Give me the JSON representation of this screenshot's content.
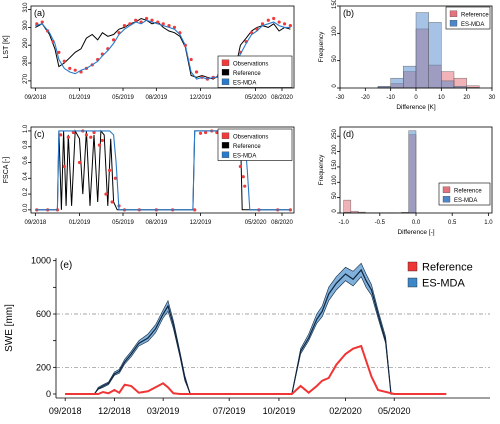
{
  "chart_data": [
    {
      "type": "line",
      "panel": "(a)",
      "ylabel": "LST [K]",
      "xlabel": "",
      "x_ticks": [
        "09/2018",
        "01/2019",
        "05/2019",
        "08/2019",
        "12/2019",
        "05/2020",
        "08/2020"
      ],
      "y_ticks": [
        270,
        280,
        290,
        300,
        310
      ],
      "ylim": [
        266,
        312
      ],
      "legend": "bottom-right",
      "series": [
        {
          "name": "Observations",
          "color": "#f03b3b",
          "style": "points",
          "x": [
            "2018-09-05",
            "2018-09-20",
            "2018-10-05",
            "2018-10-20",
            "2018-11-05",
            "2018-11-20",
            "2018-12-05",
            "2018-12-20",
            "2019-01-05",
            "2019-01-20",
            "2019-02-05",
            "2019-02-20",
            "2019-03-05",
            "2019-03-20",
            "2019-04-05",
            "2019-04-20",
            "2019-05-05",
            "2019-05-20",
            "2019-06-05",
            "2019-06-20",
            "2019-07-05",
            "2019-07-20",
            "2019-08-05",
            "2019-08-20",
            "2019-09-05",
            "2019-09-20",
            "2019-10-05",
            "2019-10-20",
            "2019-11-05",
            "2019-11-20",
            "2019-12-05",
            "2019-12-20",
            "2020-01-05",
            "2020-01-20",
            "2020-02-05",
            "2020-02-20",
            "2020-03-05",
            "2020-03-20",
            "2020-04-05",
            "2020-04-20",
            "2020-05-05",
            "2020-05-20",
            "2020-06-05",
            "2020-06-20",
            "2020-07-05",
            "2020-07-20",
            "2020-08-05"
          ],
          "values": [
            302,
            303,
            298,
            292,
            286,
            281,
            277,
            276,
            275,
            277,
            279,
            282,
            285,
            288,
            293,
            297,
            301,
            302,
            304,
            303,
            305,
            304,
            303,
            302,
            301,
            300,
            297,
            290,
            282,
            275,
            272,
            271,
            272,
            273,
            274,
            276,
            280,
            286,
            292,
            297,
            299,
            302,
            304,
            305,
            303,
            302,
            301
          ]
        },
        {
          "name": "Reference",
          "color": "#000000",
          "style": "line",
          "x": [
            "2018-09-01",
            "2018-09-20",
            "2018-10-10",
            "2018-10-25",
            "2018-11-05",
            "2018-11-20",
            "2018-12-05",
            "2018-12-20",
            "2019-01-05",
            "2019-01-20",
            "2019-02-05",
            "2019-02-20",
            "2019-03-05",
            "2019-03-20",
            "2019-04-05",
            "2019-04-20",
            "2019-05-05",
            "2019-05-20",
            "2019-06-05",
            "2019-06-20",
            "2019-07-05",
            "2019-07-20",
            "2019-08-05",
            "2019-08-20",
            "2019-09-05",
            "2019-09-20",
            "2019-10-05",
            "2019-10-20",
            "2019-11-05",
            "2019-11-20",
            "2019-12-05",
            "2019-12-20",
            "2020-01-05",
            "2020-01-20",
            "2020-02-05",
            "2020-02-20",
            "2020-03-05",
            "2020-03-20",
            "2020-04-05",
            "2020-04-20",
            "2020-05-05",
            "2020-05-20",
            "2020-06-05",
            "2020-06-20",
            "2020-07-05",
            "2020-07-20",
            "2020-08-05"
          ],
          "values": [
            300,
            302,
            296,
            288,
            278,
            280,
            283,
            286,
            288,
            294,
            296,
            293,
            297,
            295,
            296,
            299,
            300,
            302,
            303,
            305,
            304,
            302,
            303,
            300,
            298,
            297,
            295,
            289,
            273,
            272,
            273,
            272,
            271,
            273,
            275,
            274,
            276,
            290,
            294,
            298,
            300,
            301,
            300,
            302,
            298,
            300,
            299
          ]
        },
        {
          "name": "ES-MDA",
          "color": "#2a7ac9",
          "style": "line",
          "x": [
            "2018-09-01",
            "2018-09-20",
            "2018-10-10",
            "2018-10-25",
            "2018-11-05",
            "2018-11-20",
            "2018-12-05",
            "2018-12-20",
            "2019-01-05",
            "2019-01-20",
            "2019-02-05",
            "2019-02-20",
            "2019-03-05",
            "2019-03-20",
            "2019-04-05",
            "2019-04-20",
            "2019-05-05",
            "2019-05-20",
            "2019-06-05",
            "2019-06-20",
            "2019-07-05",
            "2019-07-20",
            "2019-08-05",
            "2019-08-20",
            "2019-09-05",
            "2019-09-20",
            "2019-10-05",
            "2019-10-20",
            "2019-11-05",
            "2019-11-20",
            "2019-12-05",
            "2019-12-20",
            "2020-01-05",
            "2020-01-20",
            "2020-02-05",
            "2020-02-20",
            "2020-03-05",
            "2020-03-20",
            "2020-04-05",
            "2020-04-20",
            "2020-05-05",
            "2020-05-20",
            "2020-06-05",
            "2020-06-20",
            "2020-07-05",
            "2020-07-20",
            "2020-08-05"
          ],
          "values": [
            301,
            302,
            297,
            291,
            282,
            277,
            275,
            274,
            276,
            277,
            279,
            281,
            284,
            287,
            291,
            296,
            299,
            301,
            303,
            302,
            304,
            303,
            302,
            301,
            300,
            299,
            296,
            290,
            275,
            271,
            272,
            271,
            272,
            272,
            274,
            276,
            279,
            285,
            291,
            296,
            298,
            301,
            302,
            303,
            301,
            300,
            300
          ]
        }
      ]
    },
    {
      "type": "bar",
      "panel": "(b)",
      "ylabel": "Frequency",
      "xlabel": "Difference [K]",
      "x_ticks": [
        -30,
        -20,
        -10,
        0,
        10,
        20,
        30
      ],
      "y_ticks": [
        0,
        50,
        100,
        150
      ],
      "xlim": [
        -30,
        30
      ],
      "ylim": [
        0,
        150
      ],
      "bin_edges": [
        -15,
        -10,
        -5,
        0,
        5,
        10,
        15,
        20,
        25
      ],
      "legend": "top-right",
      "series": [
        {
          "name": "Reference",
          "color": "#e5737d",
          "values": [
            2,
            8,
            30,
            108,
            42,
            30,
            18,
            4
          ]
        },
        {
          "name": "ES-MDA",
          "color": "#4d86c9",
          "values": [
            3,
            18,
            40,
            138,
            120,
            13,
            3,
            1
          ]
        }
      ]
    },
    {
      "type": "line",
      "panel": "(c)",
      "ylabel": "FSCA [-]",
      "xlabel": "",
      "x_ticks": [
        "09/2018",
        "01/2019",
        "05/2019",
        "08/2019",
        "12/2019",
        "05/2020",
        "08/2020"
      ],
      "y_ticks": [
        0.0,
        0.2,
        0.4,
        0.6,
        0.8,
        1.0
      ],
      "ylim": [
        -0.04,
        1.05
      ],
      "legend": "top-right",
      "series": [
        {
          "name": "Observations",
          "color": "#f03b3b",
          "style": "points",
          "x": [
            "2018-09-05",
            "2018-10-05",
            "2018-11-01",
            "2018-11-10",
            "2018-11-20",
            "2018-12-01",
            "2018-12-15",
            "2019-01-01",
            "2019-01-10",
            "2019-01-20",
            "2019-02-01",
            "2019-02-10",
            "2019-02-25",
            "2019-03-05",
            "2019-03-15",
            "2019-03-25",
            "2019-04-01",
            "2019-04-10",
            "2019-04-20",
            "2019-05-05",
            "2019-06-15",
            "2019-08-01",
            "2019-09-15",
            "2019-11-15",
            "2019-12-01",
            "2019-12-15",
            "2020-01-01",
            "2020-01-15",
            "2020-02-01",
            "2020-02-15",
            "2020-03-01",
            "2020-03-10",
            "2020-03-20",
            "2020-03-28",
            "2020-04-01",
            "2020-05-10",
            "2020-07-01",
            "2020-08-05"
          ],
          "values": [
            0.0,
            0.0,
            0.0,
            0.95,
            0.55,
            0.92,
            0.98,
            0.6,
            1.0,
            0.95,
            0.92,
            0.98,
            0.82,
            0.88,
            0.2,
            0.5,
            0.1,
            0.4,
            0.05,
            0.0,
            0.0,
            0.0,
            0.0,
            0.0,
            0.97,
            0.98,
            1.0,
            0.98,
            0.96,
            0.98,
            0.97,
            0.96,
            0.55,
            0.42,
            0.3,
            0.0,
            0.0,
            0.0
          ]
        },
        {
          "name": "Reference",
          "color": "#000000",
          "style": "line",
          "x": [
            "2018-09-01",
            "2018-11-01",
            "2018-11-05",
            "2018-11-12",
            "2018-11-18",
            "2018-11-25",
            "2018-12-01",
            "2018-12-10",
            "2018-12-20",
            "2019-01-01",
            "2019-01-10",
            "2019-01-20",
            "2019-01-30",
            "2019-02-10",
            "2019-02-20",
            "2019-03-01",
            "2019-03-10",
            "2019-03-20",
            "2019-03-28",
            "2019-04-05",
            "2019-04-15",
            "2019-05-01",
            "2019-11-10",
            "2019-11-15",
            "2020-03-20",
            "2020-03-25",
            "2020-04-05",
            "2020-08-05"
          ],
          "values": [
            0.0,
            0.0,
            1.0,
            0.0,
            1.0,
            0.05,
            0.95,
            0.05,
            1.0,
            0.9,
            0.2,
            1.0,
            0.05,
            0.95,
            0.1,
            1.0,
            0.95,
            0.05,
            0.9,
            0.1,
            0.0,
            0.0,
            0.0,
            1.0,
            1.0,
            0.0,
            0.0,
            0.0
          ]
        },
        {
          "name": "ES-MDA",
          "color": "#2a7ac9",
          "style": "line",
          "x": [
            "2018-09-01",
            "2018-11-01",
            "2018-11-05",
            "2018-11-25",
            "2018-12-01",
            "2019-03-25",
            "2019-04-05",
            "2019-04-12",
            "2019-04-20",
            "2019-05-01",
            "2019-11-10",
            "2019-11-15",
            "2020-03-25",
            "2020-04-01",
            "2020-04-08",
            "2020-04-15",
            "2020-08-05"
          ],
          "values": [
            0.0,
            0.0,
            1.0,
            1.0,
            1.0,
            1.0,
            0.95,
            0.6,
            0.0,
            0.0,
            0.0,
            1.0,
            1.0,
            0.92,
            0.5,
            0.0,
            0.0
          ]
        }
      ]
    },
    {
      "type": "bar",
      "panel": "(d)",
      "ylabel": "Frequency",
      "xlabel": "Difference [-]",
      "x_ticks": [
        -1.0,
        -0.5,
        0.0,
        0.5,
        1.0
      ],
      "y_ticks": [
        0,
        50,
        100,
        150,
        200,
        250
      ],
      "xlim": [
        -1.05,
        1.05
      ],
      "ylim": [
        0,
        280
      ],
      "bin_edges": [
        -1.0,
        -0.9,
        -0.8,
        -0.7,
        -0.6,
        -0.5,
        -0.4,
        -0.3,
        -0.2,
        -0.1,
        0.0
      ],
      "legend": "bottom-right",
      "series": [
        {
          "name": "Reference",
          "color": "#e5737d",
          "values": [
            42,
            6,
            3,
            1,
            1,
            1,
            1,
            1,
            2,
            255
          ]
        },
        {
          "name": "ES-MDA",
          "color": "#4d86c9",
          "values": [
            2,
            1,
            1,
            0,
            0,
            0,
            1,
            0,
            1,
            268
          ]
        }
      ]
    },
    {
      "type": "area",
      "panel": "(e)",
      "ylabel": "SWE [mm]",
      "xlabel": "",
      "x_ticks": [
        "09/2018",
        "12/2018",
        "03/2019",
        "07/2019",
        "10/2019",
        "02/2020",
        "05/2020"
      ],
      "y_ticks": [
        0,
        200,
        400,
        600,
        800,
        1000
      ],
      "y_tick_labels": [
        "0",
        "200",
        "600",
        "1000"
      ],
      "ylim": [
        -30,
        1020
      ],
      "reference_lines": [
        200,
        600
      ],
      "legend": "top-right",
      "series": [
        {
          "name": "Reference",
          "color": "#f03535",
          "x": [
            "2018-09-01",
            "2018-11-01",
            "2018-11-10",
            "2018-11-20",
            "2018-12-01",
            "2018-12-10",
            "2018-12-20",
            "2019-01-01",
            "2019-01-15",
            "2019-02-01",
            "2019-02-15",
            "2019-03-01",
            "2019-03-10",
            "2019-03-20",
            "2019-04-01",
            "2019-04-10",
            "2019-04-20",
            "2019-05-01",
            "2019-10-25",
            "2019-11-10",
            "2019-11-25",
            "2019-12-10",
            "2019-12-20",
            "2020-01-01",
            "2020-01-15",
            "2020-02-01",
            "2020-02-15",
            "2020-03-01",
            "2020-03-10",
            "2020-03-20",
            "2020-04-01",
            "2020-05-01",
            "2020-08-05"
          ],
          "values": [
            0,
            0,
            15,
            5,
            30,
            10,
            70,
            60,
            10,
            20,
            50,
            80,
            50,
            5,
            0,
            0,
            0,
            0,
            0,
            60,
            10,
            60,
            100,
            120,
            220,
            300,
            340,
            360,
            250,
            130,
            30,
            0,
            0
          ]
        },
        {
          "name": "ES-MDA",
          "color": "#3d87c8",
          "band": true,
          "x": [
            "2018-09-01",
            "2018-10-25",
            "2018-11-01",
            "2018-11-10",
            "2018-11-20",
            "2018-12-01",
            "2018-12-10",
            "2018-12-20",
            "2019-01-01",
            "2019-01-15",
            "2019-02-01",
            "2019-02-15",
            "2019-03-01",
            "2019-03-10",
            "2019-03-20",
            "2019-04-01",
            "2019-04-10",
            "2019-04-20",
            "2019-05-01",
            "2019-10-25",
            "2019-11-10",
            "2019-11-25",
            "2019-12-10",
            "2019-12-20",
            "2020-01-01",
            "2020-01-15",
            "2020-02-01",
            "2020-02-15",
            "2020-03-01",
            "2020-03-10",
            "2020-03-20",
            "2020-04-01",
            "2020-04-15",
            "2020-04-25",
            "2020-05-01",
            "2020-08-05"
          ],
          "mean": [
            0,
            0,
            40,
            60,
            80,
            150,
            170,
            240,
            300,
            380,
            420,
            490,
            600,
            660,
            520,
            300,
            120,
            0,
            0,
            0,
            320,
            420,
            560,
            620,
            750,
            830,
            900,
            860,
            930,
            850,
            780,
            600,
            400,
            0,
            0,
            0
          ],
          "lower": [
            0,
            0,
            35,
            50,
            70,
            140,
            155,
            225,
            280,
            360,
            395,
            460,
            570,
            620,
            490,
            280,
            100,
            0,
            0,
            0,
            300,
            400,
            530,
            580,
            700,
            780,
            850,
            810,
            880,
            800,
            740,
            570,
            380,
            0,
            0,
            0
          ],
          "upper": [
            0,
            0,
            50,
            70,
            90,
            165,
            185,
            260,
            320,
            400,
            450,
            520,
            630,
            700,
            550,
            320,
            140,
            0,
            0,
            0,
            340,
            450,
            600,
            660,
            800,
            880,
            950,
            920,
            980,
            900,
            820,
            630,
            430,
            0,
            0,
            0
          ]
        }
      ]
    }
  ]
}
